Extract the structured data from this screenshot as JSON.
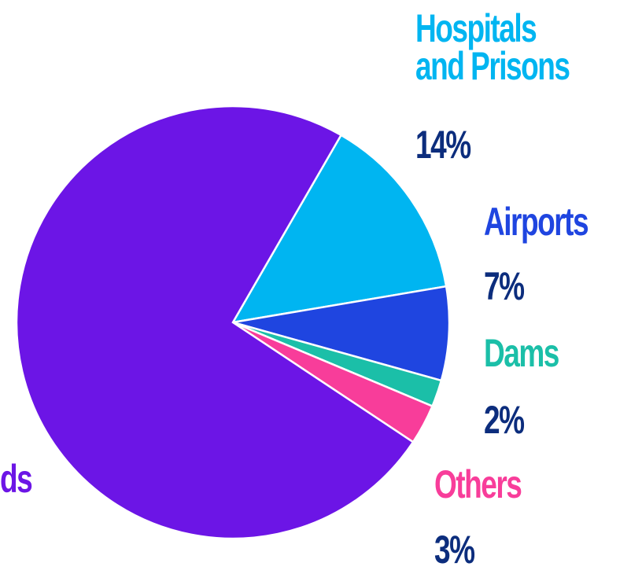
{
  "chart_data": {
    "type": "pie",
    "categories": [
      "Hospitals and Prisons",
      "Airports",
      "Dams",
      "Others",
      "ds"
    ],
    "values": [
      14,
      7,
      2,
      3,
      74
    ],
    "value_labels": [
      "14%",
      "7%",
      "2%",
      "3%",
      null
    ],
    "colors": [
      "#00b5f1",
      "#1f45e0",
      "#1bbfa8",
      "#f83d9a",
      "#6c15e6"
    ],
    "start_angle": 30
  }
}
